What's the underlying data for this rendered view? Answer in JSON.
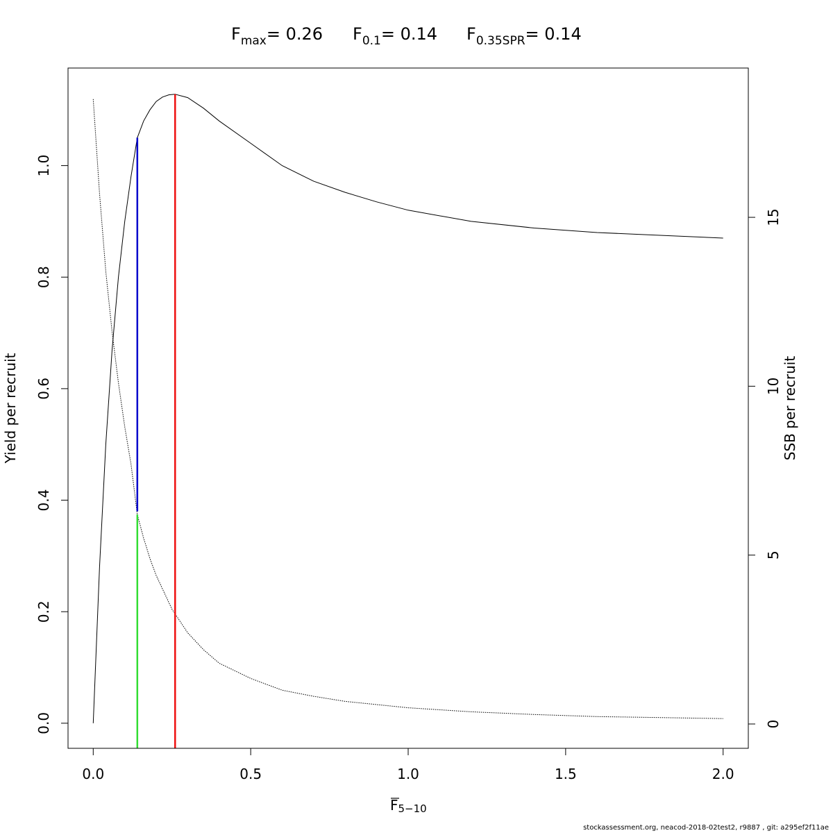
{
  "chart_data": {
    "type": "line",
    "title": {
      "fmax": {
        "label": "F",
        "sub": "max",
        "value": "= 0.26"
      },
      "f01": {
        "label": "F",
        "sub": "0.1",
        "value": "= 0.14"
      },
      "fspr": {
        "label": "F",
        "sub": "0.35SPR",
        "value": "= 0.14"
      }
    },
    "xlabel": {
      "main": "F",
      "sub": "5−10"
    },
    "ylabel": "Yield per recruit",
    "y2label": "SSB per recruit",
    "xlim": [
      -0.08,
      2.08
    ],
    "ylim": [
      -0.045,
      1.175
    ],
    "y2lim": [
      -0.72,
      19.42
    ],
    "x_ticks": [
      "0.0",
      "0.5",
      "1.0",
      "1.5",
      "2.0"
    ],
    "y_ticks": [
      "0.0",
      "0.2",
      "0.4",
      "0.6",
      "0.8",
      "1.0"
    ],
    "y2_ticks": [
      "0",
      "5",
      "10",
      "15"
    ],
    "grid": false,
    "series": [
      {
        "axis": "left",
        "style": "solid",
        "x": [
          0,
          0.02,
          0.04,
          0.06,
          0.08,
          0.1,
          0.12,
          0.14,
          0.16,
          0.18,
          0.2,
          0.22,
          0.24,
          0.26,
          0.3,
          0.35,
          0.4,
          0.5,
          0.6,
          0.7,
          0.8,
          0.9,
          1.0,
          1.2,
          1.4,
          1.6,
          1.8,
          2.0
        ],
        "y": [
          0.0,
          0.28,
          0.5,
          0.67,
          0.8,
          0.9,
          0.98,
          1.05,
          1.08,
          1.1,
          1.115,
          1.123,
          1.127,
          1.128,
          1.122,
          1.103,
          1.08,
          1.04,
          1.0,
          0.972,
          0.952,
          0.935,
          0.92,
          0.9,
          0.888,
          0.88,
          0.875,
          0.87
        ]
      },
      {
        "axis": "right",
        "style": "dotted",
        "x": [
          0,
          0.02,
          0.04,
          0.06,
          0.08,
          0.1,
          0.12,
          0.14,
          0.16,
          0.18,
          0.2,
          0.25,
          0.3,
          0.35,
          0.4,
          0.5,
          0.6,
          0.7,
          0.8,
          1.0,
          1.2,
          1.4,
          1.6,
          1.8,
          2.0
        ],
        "y": [
          18.5,
          15.7,
          13.4,
          11.6,
          10.1,
          8.8,
          7.7,
          6.2,
          5.5,
          4.9,
          4.4,
          3.4,
          2.7,
          2.2,
          1.8,
          1.35,
          1.0,
          0.82,
          0.67,
          0.48,
          0.36,
          0.28,
          0.22,
          0.19,
          0.16
        ]
      }
    ],
    "reference_lines": [
      {
        "name": "F0.35SPR",
        "color": "#33dd33",
        "x": 0.14,
        "axis": "right",
        "y_to": 6.2
      },
      {
        "name": "F0.1",
        "color": "#0000cc",
        "x": 0.14,
        "axis": "left",
        "y_from": 0.38,
        "y_to": 1.05
      },
      {
        "name": "Fmax",
        "color": "#ee1111",
        "x": 0.26,
        "axis": "left",
        "y_to": 1.128
      }
    ]
  },
  "footer": "stockassessment.org, neacod-2018-02test2, r9887 , git: a295ef2f11ae"
}
